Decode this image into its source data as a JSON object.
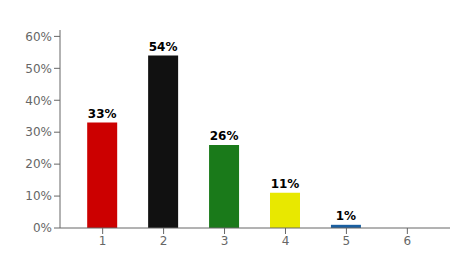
{
  "chart_data": {
    "type": "bar",
    "x": [
      1,
      2,
      3,
      4,
      5
    ],
    "values": [
      33,
      54,
      26,
      11,
      1
    ],
    "value_labels": [
      "33%",
      "54%",
      "26%",
      "11%",
      "1%"
    ],
    "colors": [
      "#cc0000",
      "#111111",
      "#1a7a1a",
      "#e8e800",
      "#1a5fa0"
    ],
    "xlim": [
      0.3,
      6.7
    ],
    "xticks": [
      1,
      2,
      3,
      4,
      5,
      6
    ],
    "ylim": [
      0,
      62
    ],
    "yticks": [
      {
        "value": 0,
        "label": "0%"
      },
      {
        "value": 10,
        "label": "10%"
      },
      {
        "value": 20,
        "label": "20%"
      },
      {
        "value": 30,
        "label": "30%"
      },
      {
        "value": 40,
        "label": "40%"
      },
      {
        "value": 50,
        "label": "50%"
      },
      {
        "value": 60,
        "label": "60%"
      }
    ],
    "data_labels": true,
    "grid": false
  }
}
